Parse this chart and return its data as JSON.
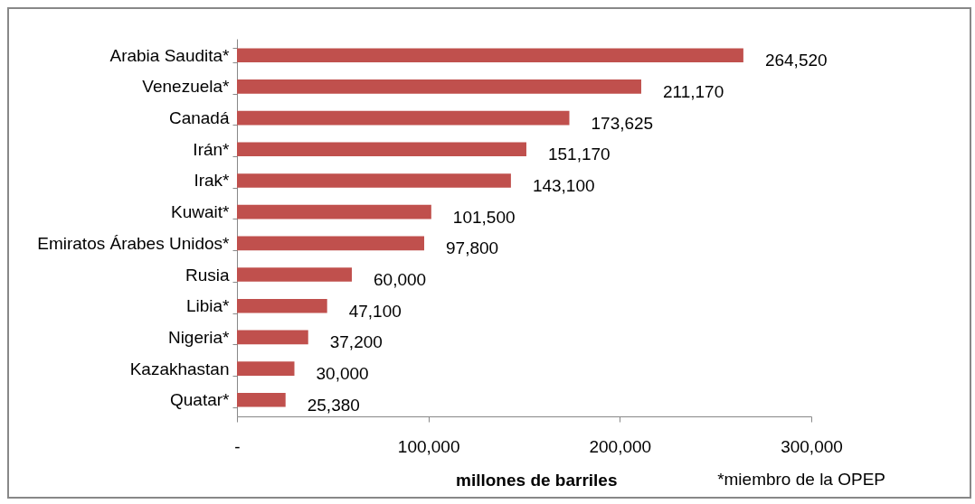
{
  "chart_data": {
    "type": "bar",
    "orientation": "horizontal",
    "categories": [
      "Arabia Saudita*",
      "Venezuela*",
      "Canadá",
      "Irán*",
      "Irak*",
      "Kuwait*",
      "Emiratos Árabes Unidos*",
      "Rusia",
      "Libia*",
      "Nigeria*",
      "Kazakhastan",
      "Quatar*"
    ],
    "values": [
      264520,
      211170,
      173625,
      151170,
      143100,
      101500,
      97800,
      60000,
      47100,
      37200,
      30000,
      25380
    ],
    "color": "#c0504d",
    "xlim": [
      0,
      300000
    ],
    "xticks": [
      {
        "value": 0,
        "label": "-"
      },
      {
        "value": 100000,
        "label": "100,000"
      },
      {
        "value": 200000,
        "label": "200,000"
      },
      {
        "value": 300000,
        "label": "300,000"
      }
    ],
    "xlabel": "millones de barriles",
    "annotations": [
      "*miembro de la OPEP"
    ],
    "value_labels": [
      "264,520",
      "211,170",
      "173,625",
      "151,170",
      "143,100",
      "101,500",
      "97,800",
      "60,000",
      "47,100",
      "37,200",
      "30,000",
      "25,380"
    ],
    "grid": false
  }
}
